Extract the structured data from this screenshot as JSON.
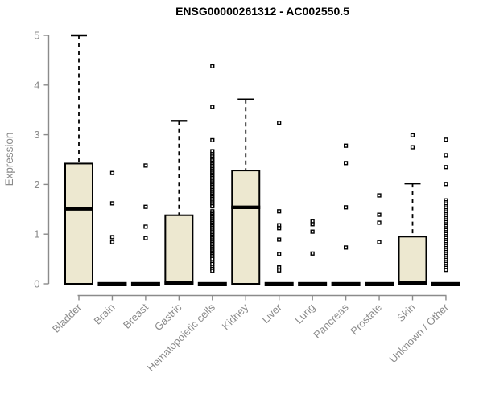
{
  "chart_data": {
    "type": "boxplot",
    "title": "ENSG00000261312 - AC002550.5",
    "ylabel": "Expression",
    "xlabel": "",
    "ylim": [
      0,
      5
    ],
    "yticks": [
      0,
      1,
      2,
      3,
      4,
      5
    ],
    "grid": false,
    "legend": "none",
    "x_label_rotation_deg": 45,
    "colors": {
      "box_fill": "#EDE8D0",
      "box_stroke": "#000000",
      "median": "#000000",
      "whisker": "#000000",
      "outlier_stroke": "#000000",
      "outlier_fill": "#ffffff",
      "axis": "#8b8b8b",
      "tick_label": "#8b8b8b",
      "title": "#000000",
      "background": "#ffffff"
    },
    "categories": [
      "Bladder",
      "Brain",
      "Breast",
      "Gastric",
      "Hematopoietic cells",
      "Kidney",
      "Liver",
      "Lung",
      "Pancreas",
      "Prostate",
      "Skin",
      "Unknown / Other"
    ],
    "series": [
      {
        "name": "Bladder",
        "q1": 0,
        "median": 1.51,
        "q3": 2.42,
        "whisker_low": 0,
        "whisker_high": 5.0,
        "outliers": []
      },
      {
        "name": "Brain",
        "q1": 0,
        "median": 0,
        "q3": 0,
        "whisker_low": 0,
        "whisker_high": 0,
        "outliers": [
          2.23,
          1.62,
          0.94,
          0.84
        ]
      },
      {
        "name": "Breast",
        "q1": 0,
        "median": 0,
        "q3": 0,
        "whisker_low": 0,
        "whisker_high": 0,
        "outliers": [
          2.38,
          1.55,
          1.15,
          0.92
        ]
      },
      {
        "name": "Gastric",
        "q1": 0,
        "median": 0,
        "q3": 1.38,
        "whisker_low": 0,
        "whisker_high": 3.28,
        "outliers": []
      },
      {
        "name": "Hematopoietic cells",
        "q1": 0,
        "median": 0,
        "q3": 0,
        "whisker_low": 0,
        "whisker_high": 0,
        "outliers": [
          4.38,
          3.56,
          2.89,
          2.67,
          2.61,
          2.56,
          2.52,
          2.48,
          2.44,
          2.4,
          2.37,
          2.34,
          2.31,
          2.28,
          2.25,
          2.22,
          2.19,
          2.16,
          2.13,
          2.1,
          2.07,
          2.04,
          2.01,
          1.98,
          1.95,
          1.92,
          1.89,
          1.86,
          1.83,
          1.8,
          1.77,
          1.74,
          1.71,
          1.68,
          1.65,
          1.62,
          1.59,
          1.56,
          1.46,
          1.43,
          1.4,
          1.37,
          1.34,
          1.31,
          1.28,
          1.25,
          1.22,
          1.19,
          1.16,
          1.13,
          1.1,
          1.07,
          1.04,
          1.01,
          0.98,
          0.95,
          0.92,
          0.89,
          0.86,
          0.83,
          0.8,
          0.77,
          0.74,
          0.71,
          0.68,
          0.65,
          0.62,
          0.59,
          0.56,
          0.53,
          0.5,
          0.44,
          0.4,
          0.34,
          0.3,
          0.26
        ]
      },
      {
        "name": "Kidney",
        "q1": 0,
        "median": 1.54,
        "q3": 2.28,
        "whisker_low": 0,
        "whisker_high": 3.71,
        "outliers": []
      },
      {
        "name": "Liver",
        "q1": 0,
        "median": 0,
        "q3": 0,
        "whisker_low": 0,
        "whisker_high": 0,
        "outliers": [
          3.24,
          1.46,
          1.18,
          1.12,
          0.89,
          0.6,
          0.33,
          0.27
        ]
      },
      {
        "name": "Lung",
        "q1": 0,
        "median": 0,
        "q3": 0,
        "whisker_low": 0,
        "whisker_high": 0,
        "outliers": [
          1.26,
          1.2,
          1.05,
          0.61
        ]
      },
      {
        "name": "Pancreas",
        "q1": 0,
        "median": 0,
        "q3": 0,
        "whisker_low": 0,
        "whisker_high": 0,
        "outliers": [
          2.78,
          2.43,
          1.54,
          0.73
        ]
      },
      {
        "name": "Prostate",
        "q1": 0,
        "median": 0,
        "q3": 0,
        "whisker_low": 0,
        "whisker_high": 0,
        "outliers": [
          1.78,
          1.39,
          1.23,
          0.84
        ]
      },
      {
        "name": "Skin",
        "q1": 0,
        "median": 0,
        "q3": 0.95,
        "whisker_low": 0,
        "whisker_high": 2.02,
        "outliers": [
          2.99,
          2.75
        ]
      },
      {
        "name": "Unknown / Other",
        "q1": 0,
        "median": 0,
        "q3": 0,
        "whisker_low": 0,
        "whisker_high": 0,
        "outliers": [
          2.9,
          2.59,
          2.35,
          2.01,
          1.68,
          1.64,
          1.6,
          1.56,
          1.52,
          1.48,
          1.44,
          1.4,
          1.36,
          1.32,
          1.28,
          1.24,
          1.2,
          1.16,
          1.12,
          1.08,
          1.04,
          1.0,
          0.96,
          0.92,
          0.88,
          0.84,
          0.8,
          0.76,
          0.72,
          0.68,
          0.64,
          0.6,
          0.56,
          0.52,
          0.48,
          0.44,
          0.4,
          0.36,
          0.32,
          0.28
        ]
      }
    ]
  }
}
